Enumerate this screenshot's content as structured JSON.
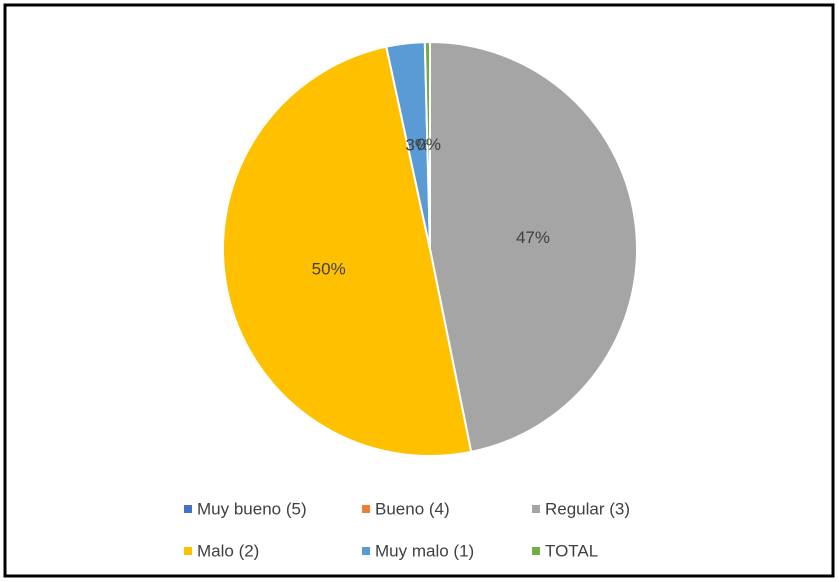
{
  "chart_data": {
    "type": "pie",
    "categories": [
      "Muy bueno (5)",
      "Bueno (4)",
      "Regular (3)",
      "Malo (2)",
      "Muy malo (1)",
      "TOTAL"
    ],
    "values": [
      0,
      0,
      47,
      50,
      3,
      0.4
    ],
    "value_labels": [
      null,
      null,
      "47%",
      "50%",
      "3%",
      "0%"
    ],
    "colors": [
      "#4472c4",
      "#ed7d31",
      "#a5a5a5",
      "#ffc000",
      "#5b9bd5",
      "#70ad47"
    ],
    "legend": "bottom"
  }
}
